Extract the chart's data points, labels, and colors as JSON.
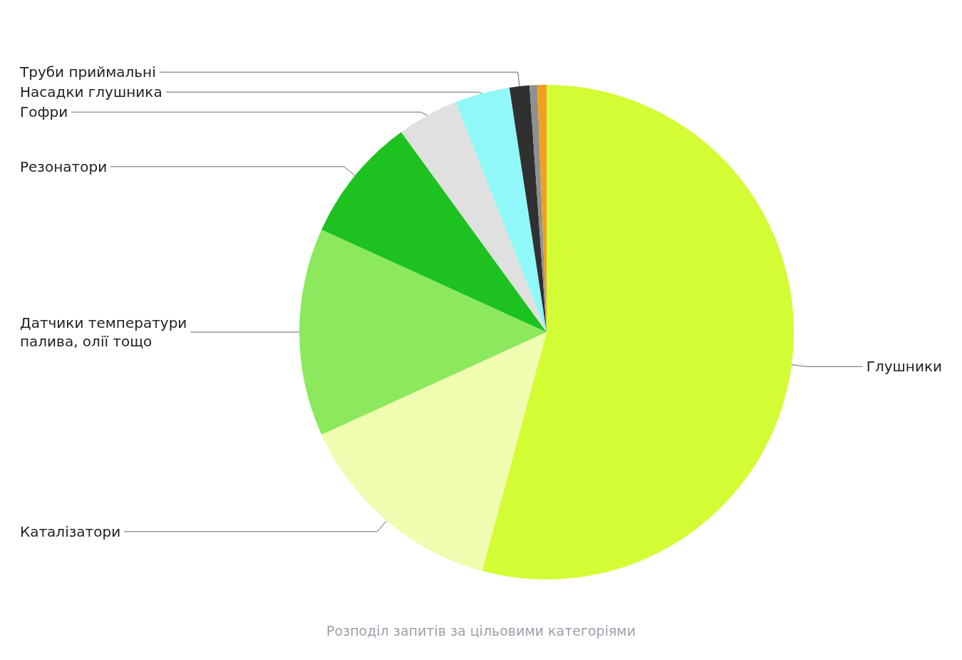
{
  "chart_data": {
    "type": "pie",
    "title": "Розподіл запитів за цільовими категоріями",
    "categories": [
      "Глушники",
      "Каталізатори",
      "Датчики температури\nпалива, олії тощо",
      "Резонатори",
      "Гофри",
      "Насадки глушника",
      "Труби приймальні",
      null,
      null
    ],
    "values": [
      54.2,
      14.0,
      13.6,
      8.2,
      4.0,
      3.6,
      1.3,
      0.5,
      0.6
    ],
    "colors": [
      "#d4fc34",
      "#f0fcb0",
      "#8ce85c",
      "#1ec220",
      "#e0e0e0",
      "#90f8f8",
      "#303030",
      "#909090",
      "#f0a020"
    ],
    "legend": false
  }
}
